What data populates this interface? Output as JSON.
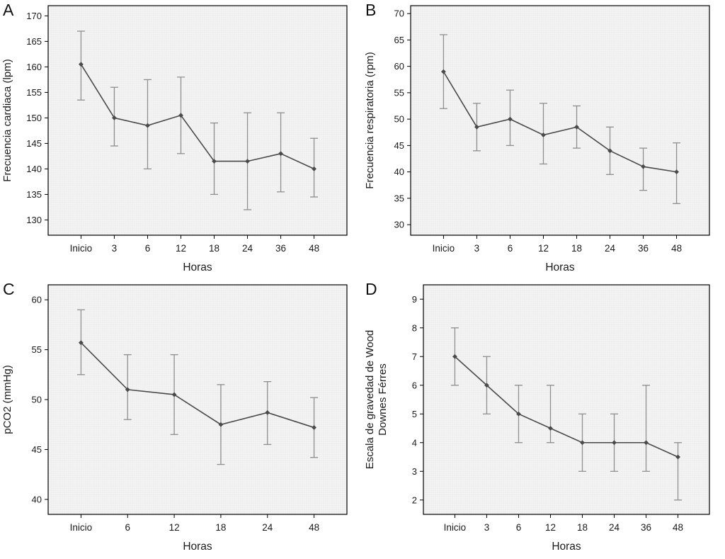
{
  "style": {
    "line_color": "#4a4a4a",
    "marker_color": "#4a4a4a",
    "error_color": "#8f8f8f",
    "plot_bg": "#f3f3f3",
    "plot_dot": "#dcdcdc",
    "axis_color": "#000000",
    "text_color": "#1a1a1a"
  },
  "chart_data": [
    {
      "panel": "A",
      "type": "line",
      "title": "",
      "xlabel": "Horas",
      "ylabel": "Frecuencia cardiaca (lpm)",
      "ylabel_lines": [
        "Frecuencia cardiaca (lpm)"
      ],
      "categories": [
        "Inicio",
        "3",
        "6",
        "12",
        "18",
        "24",
        "36",
        "48"
      ],
      "values": [
        160.5,
        150,
        148.5,
        150.5,
        141.5,
        141.5,
        143,
        140
      ],
      "err_low": [
        153.5,
        144.5,
        140,
        143,
        135,
        132,
        135.5,
        134.5
      ],
      "err_high": [
        167,
        156,
        157.5,
        158,
        149,
        151,
        151,
        146
      ],
      "ylim": [
        127,
        172
      ],
      "yticks": [
        130,
        135,
        140,
        145,
        150,
        155,
        160,
        165,
        170
      ],
      "grid": false,
      "legend": "none"
    },
    {
      "panel": "B",
      "type": "line",
      "title": "",
      "xlabel": "Horas",
      "ylabel": "Frecuencia respiratoria (rpm)",
      "ylabel_lines": [
        "Frecuencia respiratoria (rpm)"
      ],
      "categories": [
        "Inicio",
        "3",
        "6",
        "12",
        "18",
        "24",
        "36",
        "48"
      ],
      "values": [
        59,
        48.5,
        50,
        47,
        48.5,
        44,
        41,
        40
      ],
      "err_low": [
        52,
        44,
        45,
        41.5,
        44.5,
        39.5,
        36.5,
        34
      ],
      "err_high": [
        66,
        53,
        55.5,
        53,
        52.5,
        48.5,
        44.5,
        45.5
      ],
      "ylim": [
        28,
        71.5
      ],
      "yticks": [
        30,
        35,
        40,
        45,
        50,
        55,
        60,
        65,
        70
      ],
      "grid": false,
      "legend": "none"
    },
    {
      "panel": "C",
      "type": "line",
      "title": "",
      "xlabel": "Horas",
      "ylabel": "pCO2 (mmHg)",
      "ylabel_lines": [
        "pCO2 (mmHg)"
      ],
      "categories": [
        "Inicio",
        "6",
        "12",
        "18",
        "24",
        "48"
      ],
      "values": [
        55.7,
        51,
        50.5,
        47.5,
        48.7,
        47.2
      ],
      "err_low": [
        52.5,
        48,
        46.5,
        43.5,
        45.5,
        44.2
      ],
      "err_high": [
        59,
        54.5,
        54.5,
        51.5,
        51.8,
        50.2
      ],
      "ylim": [
        38.5,
        61.5
      ],
      "yticks": [
        40,
        45,
        50,
        55,
        60
      ],
      "grid": false,
      "legend": "none"
    },
    {
      "panel": "D",
      "type": "line",
      "title": "",
      "xlabel": "Horas",
      "ylabel": "Escala de gravedad de Wood Downes Férres",
      "ylabel_lines": [
        "Escala de gravedad de Wood",
        "Downes Férres"
      ],
      "categories": [
        "Inicio",
        "3",
        "6",
        "12",
        "18",
        "24",
        "36",
        "48"
      ],
      "values": [
        7,
        6,
        5,
        4.5,
        4,
        4,
        4,
        3.5
      ],
      "err_low": [
        6,
        5,
        4,
        4,
        3,
        3,
        3,
        2
      ],
      "err_high": [
        8,
        7,
        6,
        6,
        5,
        5,
        6,
        4
      ],
      "ylim": [
        1.5,
        9.5
      ],
      "yticks": [
        2,
        3,
        4,
        5,
        6,
        7,
        8,
        9
      ],
      "grid": false,
      "legend": "none"
    }
  ]
}
